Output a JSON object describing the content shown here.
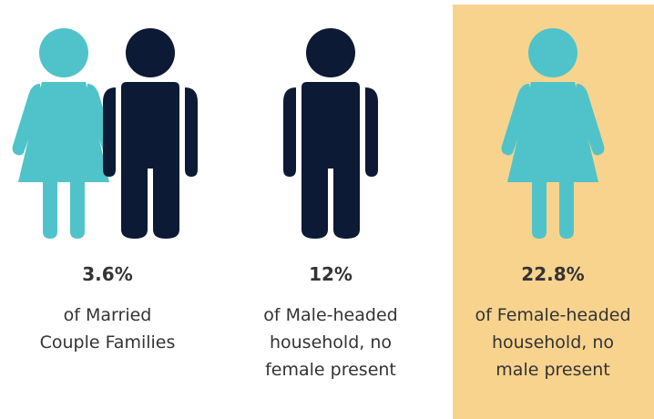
{
  "panels": [
    {
      "value": "3.6%",
      "label_lines": [
        "of Married",
        "Couple Families"
      ]
    },
    {
      "value": "12%",
      "label_lines": [
        "of Male-headed",
        "household, no",
        "female present"
      ]
    },
    {
      "value": "22.8%",
      "label_lines": [
        "of Female-headed",
        "household, no",
        "male present"
      ]
    }
  ]
}
